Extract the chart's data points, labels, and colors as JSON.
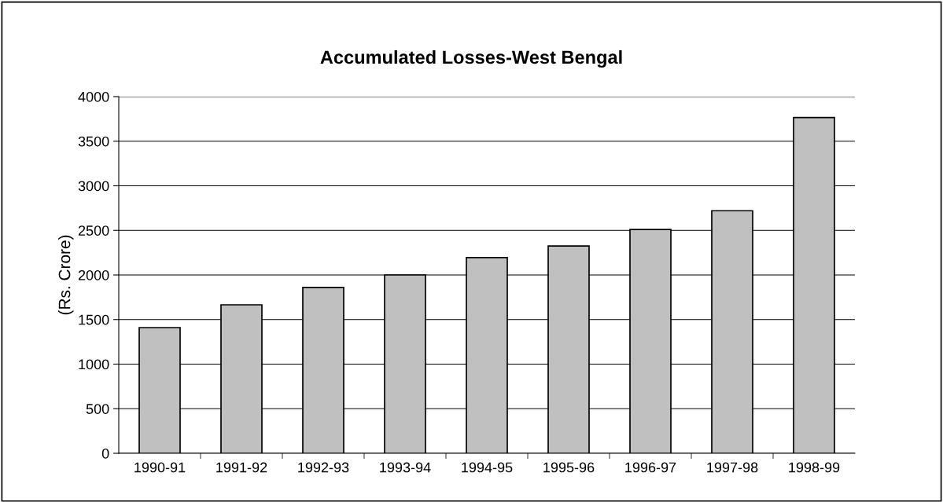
{
  "chart_data": {
    "type": "bar",
    "title": "Accumulated Losses-West Bengal",
    "ylabel": "(Rs. Crore)",
    "categories": [
      "1990-91",
      "1991-92",
      "1992-93",
      "1993-94",
      "1994-95",
      "1995-96",
      "1996-97",
      "1997-98",
      "1998-99"
    ],
    "values": [
      1410,
      1665,
      1860,
      2000,
      2195,
      2325,
      2510,
      2720,
      3765
    ],
    "color": "#c0c0c0",
    "ylim": [
      0,
      4000
    ],
    "yticks": [
      0,
      500,
      1000,
      1500,
      2000,
      2500,
      3000,
      3500,
      4000
    ],
    "grid": "y",
    "legend": false
  }
}
